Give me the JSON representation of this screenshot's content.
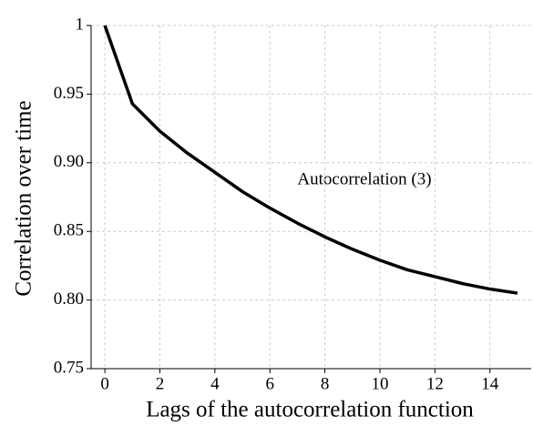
{
  "chart_data": {
    "type": "line",
    "x_label": "Lags of the autocorrelation function",
    "y_label": "Correlation over time",
    "annotation": "Autocorrelation (3)",
    "x": [
      0,
      1,
      2,
      3,
      4,
      5,
      6,
      7,
      8,
      9,
      10,
      11,
      12,
      13,
      14,
      15
    ],
    "series": [
      {
        "color": "#000000",
        "values": [
          1.0,
          0.943,
          0.923,
          0.907,
          0.893,
          0.879,
          0.867,
          0.856,
          0.846,
          0.837,
          0.829,
          0.822,
          0.817,
          0.812,
          0.808,
          0.805
        ]
      }
    ],
    "xlim": [
      -0.5,
      15.5
    ],
    "xticks": [
      0,
      2,
      4,
      6,
      8,
      10,
      12,
      14
    ],
    "ylim": [
      0.75,
      1
    ],
    "yticks": [
      0.75,
      {
        "value": 0.8,
        "label": "0.80"
      },
      0.85,
      {
        "value": 0.9,
        "label": "0.90"
      },
      0.95,
      1
    ],
    "grid": true
  }
}
